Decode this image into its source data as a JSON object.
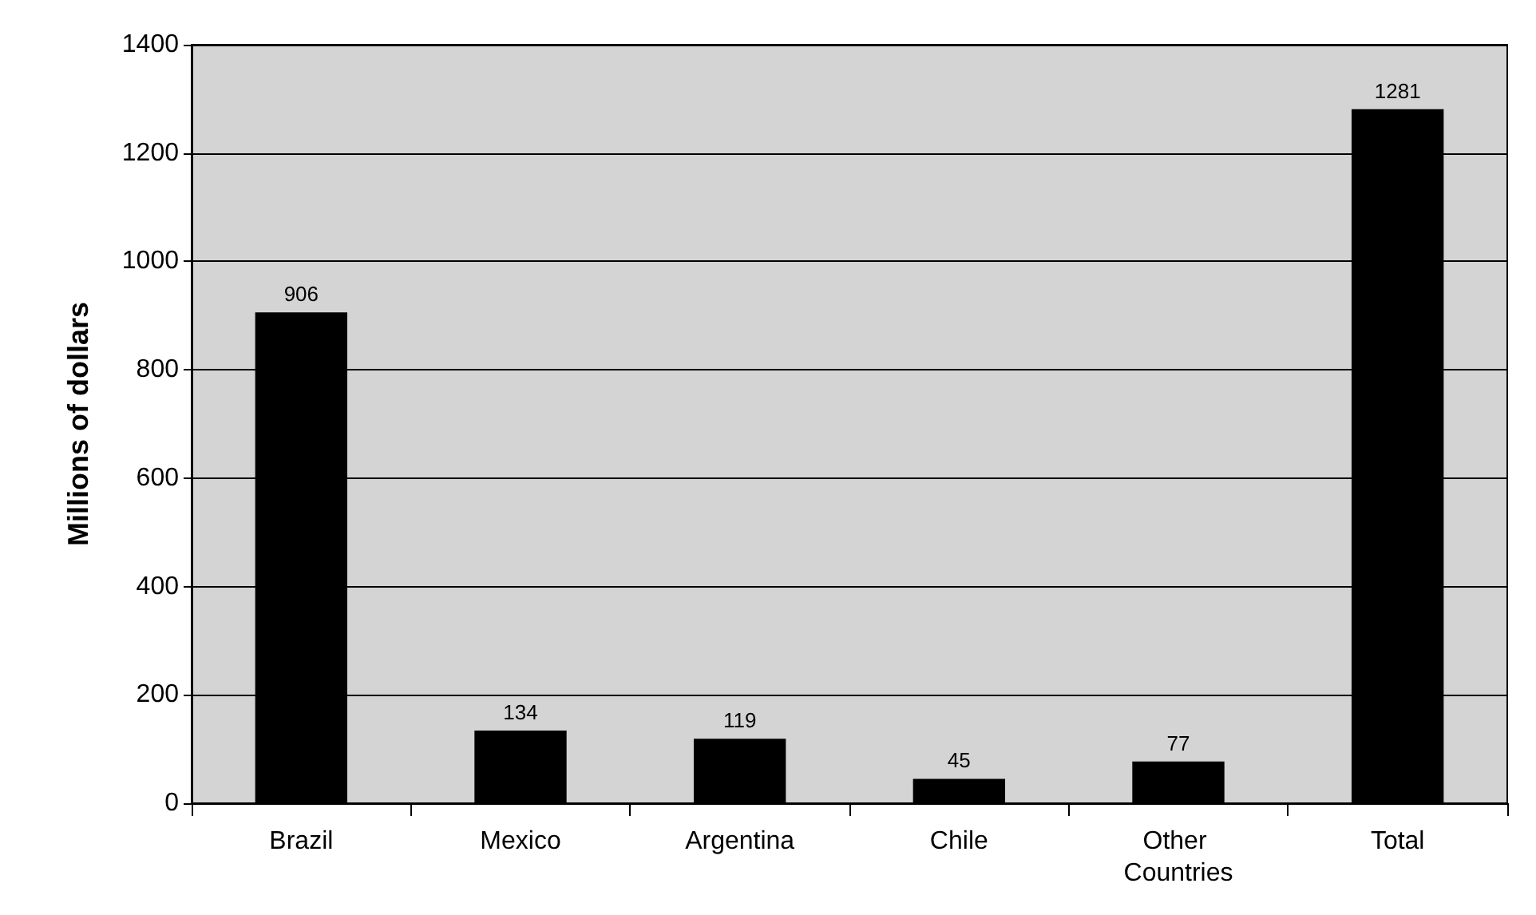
{
  "chart_data": {
    "type": "bar",
    "ylabel": "Millions of dollars",
    "categories": [
      "Brazil",
      "Mexico",
      "Argentina",
      "Chile",
      "Other Countries",
      "Total"
    ],
    "values": [
      906,
      134,
      119,
      45,
      77,
      1281
    ],
    "color": "#000000",
    "ylim": [
      0,
      1400
    ],
    "yticks": [
      0,
      200,
      400,
      600,
      800,
      1000,
      1200,
      1400
    ],
    "grid": "y",
    "data_labels": true
  }
}
